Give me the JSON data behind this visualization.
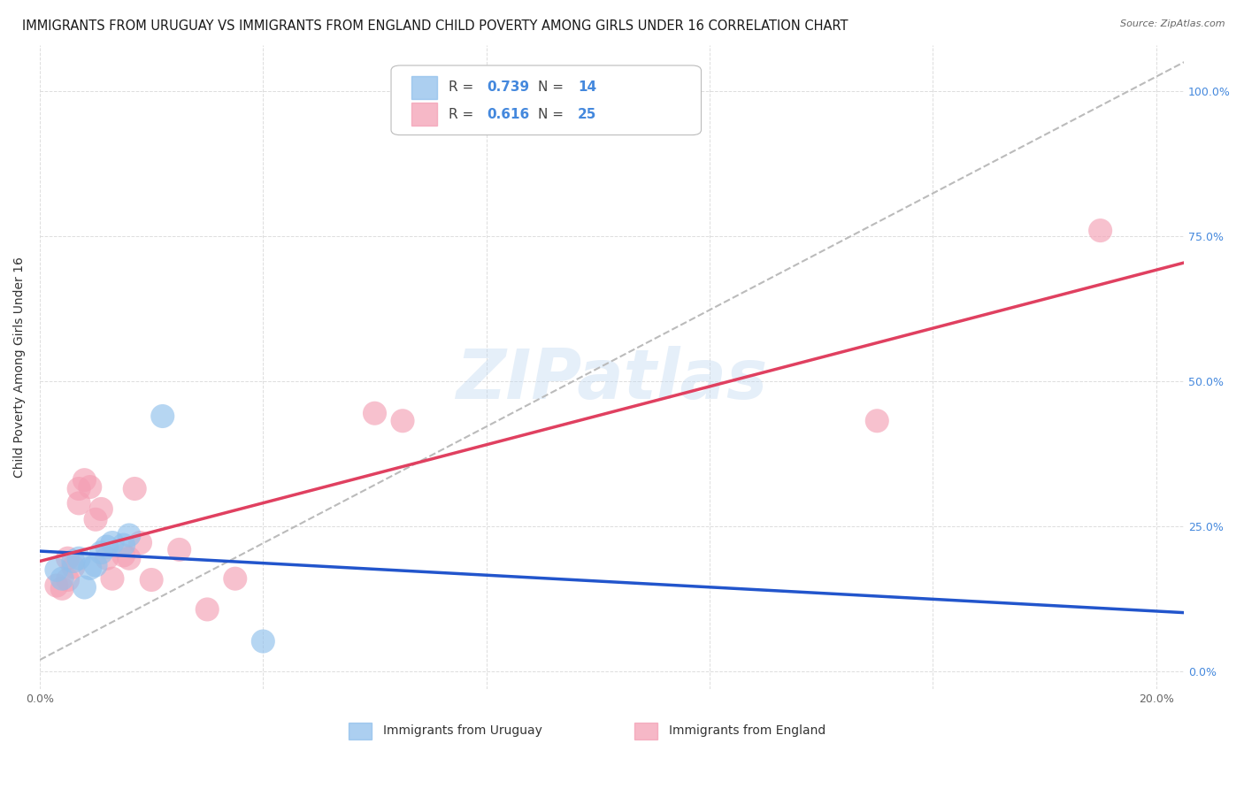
{
  "title": "IMMIGRANTS FROM URUGUAY VS IMMIGRANTS FROM ENGLAND CHILD POVERTY AMONG GIRLS UNDER 16 CORRELATION CHART",
  "source": "Source: ZipAtlas.com",
  "ylabel": "Child Poverty Among Girls Under 16",
  "xlim": [
    0.0,
    0.205
  ],
  "ylim": [
    -0.03,
    1.08
  ],
  "x_ticks": [
    0.0,
    0.04,
    0.08,
    0.12,
    0.16,
    0.2
  ],
  "x_tick_labels": [
    "0.0%",
    "",
    "",
    "",
    "",
    "20.0%"
  ],
  "y_ticks": [
    0.0,
    0.25,
    0.5,
    0.75,
    1.0
  ],
  "y_tick_labels_right": [
    "0.0%",
    "25.0%",
    "50.0%",
    "75.0%",
    "100.0%"
  ],
  "watermark": "ZIPatlas",
  "uruguay_color": "#90C0EC",
  "england_color": "#F4A0B5",
  "uruguay_line_color": "#2255CC",
  "england_line_color": "#E04060",
  "dashed_line_color": "#BBBBBB",
  "R_uruguay": 0.739,
  "N_uruguay": 14,
  "R_england": 0.616,
  "N_england": 25,
  "uruguay_x": [
    0.003,
    0.004,
    0.006,
    0.007,
    0.008,
    0.009,
    0.01,
    0.011,
    0.012,
    0.013,
    0.015,
    0.016,
    0.022,
    0.04
  ],
  "uruguay_y": [
    0.175,
    0.16,
    0.19,
    0.195,
    0.145,
    0.178,
    0.183,
    0.205,
    0.215,
    0.222,
    0.218,
    0.235,
    0.44,
    0.052
  ],
  "england_x": [
    0.003,
    0.004,
    0.005,
    0.005,
    0.006,
    0.007,
    0.007,
    0.008,
    0.009,
    0.01,
    0.011,
    0.012,
    0.013,
    0.015,
    0.016,
    0.017,
    0.018,
    0.02,
    0.025,
    0.03,
    0.035,
    0.06,
    0.065,
    0.15,
    0.19
  ],
  "england_y": [
    0.148,
    0.143,
    0.158,
    0.195,
    0.18,
    0.315,
    0.29,
    0.33,
    0.318,
    0.262,
    0.28,
    0.195,
    0.16,
    0.2,
    0.195,
    0.315,
    0.222,
    0.158,
    0.21,
    0.107,
    0.16,
    0.445,
    0.432,
    0.432,
    0.76
  ],
  "grid_color": "#DDDDDD",
  "background_color": "#FFFFFF",
  "title_fontsize": 10.5,
  "axis_label_fontsize": 10,
  "tick_fontsize": 9,
  "legend_fontsize": 11,
  "right_tick_color": "#4488DD",
  "marker_size": 380
}
